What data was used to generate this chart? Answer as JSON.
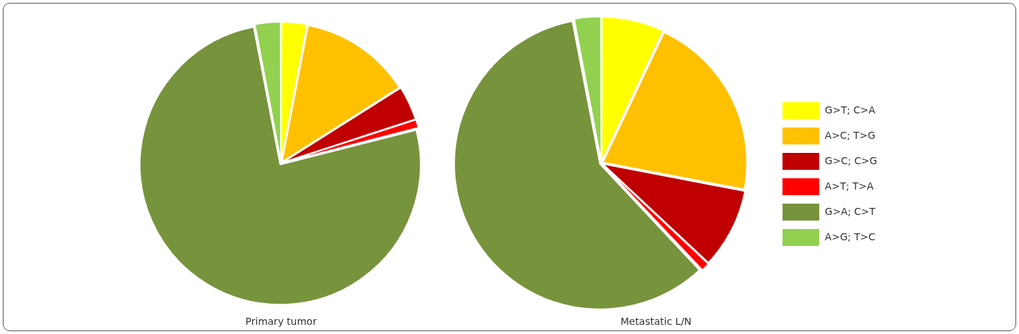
{
  "chart_data": [
    {
      "type": "pie",
      "title": "Primary tumor",
      "categories": [
        null,
        null,
        null,
        null,
        null,
        null
      ],
      "values": [
        3,
        13,
        4,
        1,
        76,
        3
      ],
      "colors": [
        "#ffff00",
        "#ffc000",
        "#c00000",
        "#ff0000",
        "#77933c",
        "#92d050"
      ],
      "legend": false
    },
    {
      "type": "pie",
      "title": "Metastatic L/N",
      "categories": [
        "G>T; C>A",
        "A>C; T>G",
        "G>C; C>G",
        "A>T; T>A",
        "G>A; C>T",
        "A>G; T>C"
      ],
      "values": [
        7,
        21,
        9,
        1,
        59,
        3
      ],
      "colors": [
        "#ffff00",
        "#ffc000",
        "#c00000",
        "#ff0000",
        "#77933c",
        "#92d050"
      ],
      "legend": "right"
    }
  ]
}
